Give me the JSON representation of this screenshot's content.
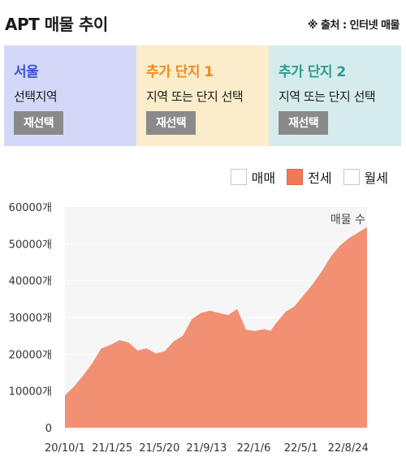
{
  "header": {
    "title": "APT 매물 추이",
    "source": "※ 출처 : 인터넷 매물"
  },
  "panels": [
    {
      "title": "서울",
      "subtitle": "선택지역",
      "button": "재선택",
      "bg": "#d3d8f8",
      "title_color": "#3b4ee0"
    },
    {
      "title": "추가 단지 1",
      "subtitle": "지역 또는 단지 선택",
      "button": "재선택",
      "bg": "#fbeccb",
      "title_color": "#f08a1c"
    },
    {
      "title": "추가 단지 2",
      "subtitle": "지역 또는 단지 선택",
      "button": "재선택",
      "bg": "#d6ecec",
      "title_color": "#2a9c93"
    }
  ],
  "legend": {
    "items": [
      {
        "label": "매매",
        "checked": false
      },
      {
        "label": "전세",
        "checked": true
      },
      {
        "label": "월세",
        "checked": false
      }
    ]
  },
  "chart_data": {
    "type": "area",
    "series_label": "매물 수",
    "color": "#f29073",
    "ylim": [
      0,
      60000
    ],
    "y_ticks": [
      "60000개",
      "50000개",
      "40000개",
      "30000개",
      "20000개",
      "10000개",
      "0"
    ],
    "x_ticks": [
      "20/10/1",
      "21/1/25",
      "21/5/20",
      "21/9/13",
      "22/1/6",
      "22/5/1",
      "22/8/24"
    ],
    "x": [
      0,
      0.03,
      0.06,
      0.09,
      0.12,
      0.15,
      0.18,
      0.21,
      0.24,
      0.27,
      0.3,
      0.33,
      0.36,
      0.39,
      0.42,
      0.45,
      0.48,
      0.51,
      0.54,
      0.57,
      0.6,
      0.63,
      0.66,
      0.68,
      0.7,
      0.73,
      0.76,
      0.79,
      0.82,
      0.85,
      0.88,
      0.91,
      0.94,
      0.97,
      1.0
    ],
    "values": [
      8800,
      11200,
      14200,
      17500,
      21500,
      22500,
      23800,
      23200,
      21000,
      21600,
      20200,
      20800,
      23500,
      25000,
      29500,
      31200,
      31800,
      31200,
      30600,
      32300,
      26600,
      26300,
      26800,
      26300,
      28500,
      31500,
      33000,
      36000,
      39000,
      42500,
      46500,
      49500,
      51500,
      53000,
      54500
    ]
  }
}
